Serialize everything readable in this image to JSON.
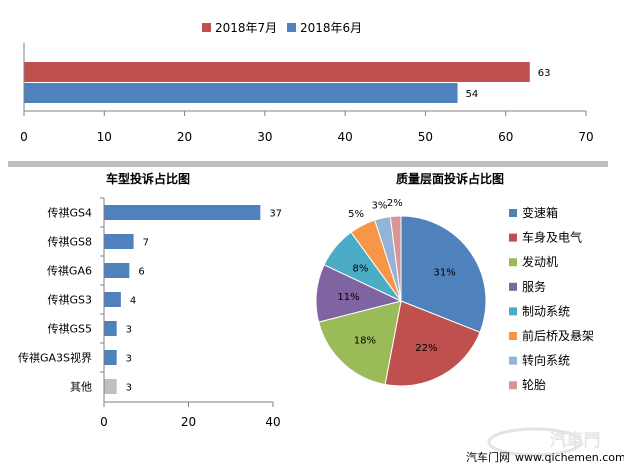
{
  "chart_data": [
    {
      "type": "bar",
      "orientation": "horizontal",
      "title": "",
      "categories": [
        ""
      ],
      "series": [
        {
          "name": "2018年7月",
          "values": [
            63
          ],
          "color": "#C0504D"
        },
        {
          "name": "2018年6月",
          "values": [
            54
          ],
          "color": "#4F81BD"
        }
      ],
      "xlim": [
        0,
        70
      ],
      "xticks": [
        0,
        10,
        20,
        30,
        40,
        50,
        60,
        70
      ],
      "legend": "top-center",
      "grid": false
    },
    {
      "type": "bar",
      "orientation": "horizontal",
      "title": "车型投诉占比图",
      "categories": [
        "传祺GS4",
        "传祺GS8",
        "传祺GA6",
        "传祺GS3",
        "传祺GS5",
        "传祺GA3S视界",
        "其他"
      ],
      "values": [
        37,
        7,
        6,
        4,
        3,
        3,
        3
      ],
      "colors": [
        "#4F81BD",
        "#4F81BD",
        "#4F81BD",
        "#4F81BD",
        "#4F81BD",
        "#4F81BD",
        "#BFBFBF"
      ],
      "xlim": [
        0,
        40
      ],
      "xticks": [
        0,
        20,
        40
      ],
      "grid": false
    },
    {
      "type": "pie",
      "title": "质量层面投诉占比图",
      "labels": [
        "变速箱",
        "车身及电气",
        "发动机",
        "服务",
        "制动系统",
        "前后桥及悬架",
        "转向系统",
        "轮胎"
      ],
      "values": [
        31,
        22,
        18,
        11,
        8,
        5,
        3,
        2
      ],
      "colors": [
        "#4F81BD",
        "#C0504D",
        "#9BBB59",
        "#8064A2",
        "#4BACC6",
        "#F79646",
        "#95B3D7",
        "#D99594"
      ],
      "value_suffix": "%",
      "legend": "right"
    }
  ],
  "watermark": {
    "site": "汽车门网",
    "url": "www.qichemen.com"
  }
}
